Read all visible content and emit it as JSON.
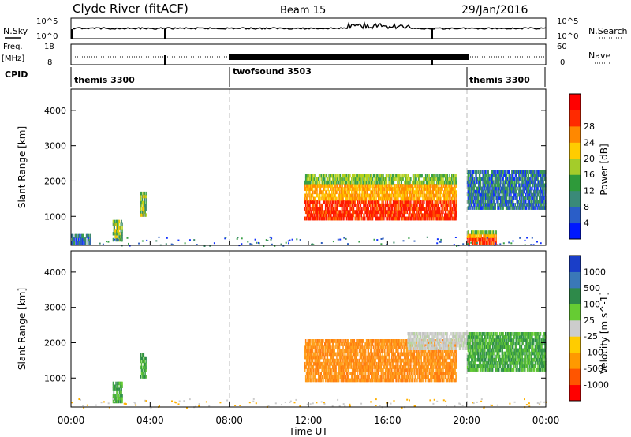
{
  "header": {
    "station": "Clyde River (fitACF)",
    "beam": "Beam 15",
    "date": "29/Jan/2016"
  },
  "strip_labels": {
    "nsky": "N.Sky",
    "nsky_ticks": [
      "10^5",
      "10^0"
    ],
    "nsearch": "N.Search",
    "nsearch_ticks": [
      "10^5",
      "10^0"
    ],
    "freq": "Freq.",
    "freq_unit": "[MHz]",
    "freq_ticks": [
      "18",
      "8"
    ],
    "nave": "Nave",
    "nave_ticks": [
      "60",
      "0"
    ],
    "cpid": "CPID"
  },
  "cpid_segments": [
    {
      "name": "themis 3300",
      "start": 0,
      "end": 8
    },
    {
      "name": "twofsound 3503",
      "start": 8,
      "end": 20
    },
    {
      "name": "themis 3300",
      "start": 20,
      "end": 24
    }
  ],
  "chart_data": [
    {
      "type": "heatmap",
      "panel": "power",
      "ylabel": "Slant Range [km]",
      "xlabel": "Time UT",
      "x_ticks": [
        "00:00",
        "04:00",
        "08:00",
        "12:00",
        "16:00",
        "20:00",
        "00:00"
      ],
      "x_range_hours": [
        0,
        24
      ],
      "y_ticks": [
        1000,
        2000,
        3000,
        4000
      ],
      "y_range_km": [
        180,
        4600
      ],
      "colorbar_label": "Power [dB]",
      "colorbar_ticks": [
        4,
        8,
        12,
        16,
        20,
        24,
        28
      ],
      "colorbar_colors": [
        "#0018ff",
        "#2a5ec8",
        "#3a8a78",
        "#2e9a3a",
        "#a4cc2a",
        "#ffcc00",
        "#ff8800",
        "#ff2a00",
        "#ff0000"
      ],
      "regions": [
        {
          "t0": 11.8,
          "t1": 19.5,
          "r0": 900,
          "r1": 2200,
          "level": "high"
        },
        {
          "t0": 20.0,
          "t1": 21.5,
          "r0": 200,
          "r1": 600,
          "level": "high"
        },
        {
          "t0": 3.5,
          "t1": 3.8,
          "r0": 1000,
          "r1": 1700,
          "level": "medium"
        },
        {
          "t0": 2.1,
          "t1": 2.6,
          "r0": 300,
          "r1": 900,
          "level": "medium"
        },
        {
          "t0": 20.0,
          "t1": 24.0,
          "r0": 1200,
          "r1": 2300,
          "level": "low"
        },
        {
          "t0": 0.0,
          "t1": 1.0,
          "r0": 200,
          "r1": 500,
          "level": "low"
        }
      ]
    },
    {
      "type": "heatmap",
      "panel": "velocity",
      "ylabel": "Slant Range [km]",
      "xlabel": "Time UT",
      "x_ticks": [
        "00:00",
        "04:00",
        "08:00",
        "12:00",
        "16:00",
        "20:00",
        "00:00"
      ],
      "x_range_hours": [
        0,
        24
      ],
      "y_ticks": [
        1000,
        2000,
        3000,
        4000
      ],
      "y_range_km": [
        180,
        4600
      ],
      "colorbar_label": "Velocity [m s^-1]",
      "colorbar_ticks": [
        1000,
        500,
        100,
        25,
        -25,
        -100,
        -500,
        -1000
      ],
      "colorbar_colors": [
        "#1a3ec8",
        "#3a78b8",
        "#2e8a4a",
        "#66cc33",
        "#cccccc",
        "#ffcc00",
        "#ff9900",
        "#ff5500",
        "#ff0000"
      ],
      "regions": [
        {
          "t0": 11.8,
          "t1": 19.5,
          "r0": 900,
          "r1": 2100,
          "level": "-100"
        },
        {
          "t0": 17.0,
          "t1": 20.5,
          "r0": 1800,
          "r1": 2300,
          "level": "-25"
        },
        {
          "t0": 20.0,
          "t1": 24.0,
          "r0": 1200,
          "r1": 2300,
          "level": "100"
        },
        {
          "t0": 3.5,
          "t1": 3.8,
          "r0": 1000,
          "r1": 1700,
          "level": "100"
        },
        {
          "t0": 2.1,
          "t1": 2.6,
          "r0": 300,
          "r1": 900,
          "level": "100"
        }
      ]
    }
  ]
}
